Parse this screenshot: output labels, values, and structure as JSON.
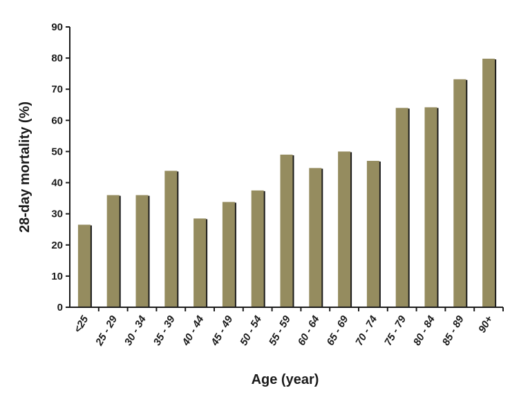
{
  "chart_data": {
    "type": "bar",
    "title": "",
    "xlabel": "Age (year)",
    "ylabel": "28-day mortality (%)",
    "ylim": [
      0,
      90
    ],
    "yticks": [
      0,
      10,
      20,
      30,
      40,
      50,
      60,
      70,
      80,
      90
    ],
    "grid": false,
    "legend": "none",
    "categories": [
      "<25",
      "25 - 29",
      "30 - 34",
      "35 - 39",
      "40 - 44",
      "45 - 49",
      "50 - 54",
      "55 - 59",
      "60 - 64",
      "65 - 69",
      "70 - 74",
      "75 - 79",
      "80 - 84",
      "85 - 89",
      "90+"
    ],
    "values": [
      26.5,
      36,
      36,
      43.8,
      28.5,
      33.8,
      37.5,
      49,
      44.7,
      50,
      47,
      64,
      64.2,
      73.2,
      79.8
    ],
    "colors": {
      "bar": "#958c5f",
      "bar_shadow": "#1a1a1a",
      "axis": "#1a1a1a"
    }
  }
}
